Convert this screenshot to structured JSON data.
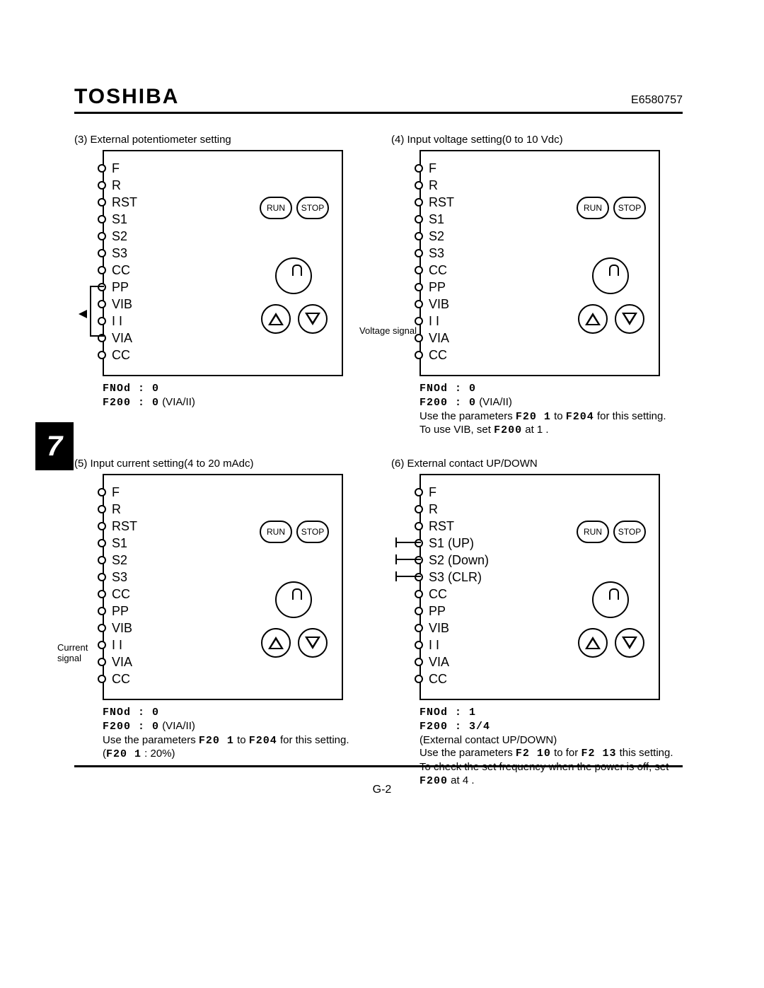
{
  "header": {
    "brand": "TOSHIBA",
    "docnum": "E6580757"
  },
  "tab": "7",
  "pagenum": "G-2",
  "buttons": {
    "run": "RUN",
    "stop": "STOP"
  },
  "terminals_std": [
    "F",
    "R",
    "RST",
    "S1",
    "S2",
    "S3",
    "CC",
    "PP",
    "VIB",
    "I I",
    "VIA",
    "CC"
  ],
  "panels": {
    "p3": {
      "title": "(3)   External potentiometer setting",
      "param1": "FNOd : 0",
      "param2": "F200 : 0",
      "param2_note": "(VIA/II)"
    },
    "p4": {
      "title": "(4)   Input voltage setting(0 to 10 Vdc)",
      "sig": "Voltage signal",
      "param1": "FNOd : 0",
      "param2": "F200 : 0",
      "param2_note": "(VIA/II)",
      "note1a": "Use the parameters ",
      "note1b": "F20 1",
      "note1c": " to ",
      "note1d": "F204",
      "note1e": "  for this setting.",
      "note2a": "To use VIB, set ",
      "note2b": "F200",
      "note2c": " at 1 ."
    },
    "p5": {
      "title": "(5)   Input current setting(4 to 20 mAdc)",
      "sig": "Current signal",
      "param1": "FNOd : 0",
      "param2": "F200 : 0",
      "param2_note": "(VIA/II)",
      "note1a": "Use the parameters ",
      "note1b": "F20 1",
      "note1c": " to ",
      "note1d": "F204",
      "note1e": "  for this setting. (",
      "note1f": "F20 1",
      "note1g": " : 20%)"
    },
    "p6": {
      "title": "(6)   External contact UP/DOWN",
      "terms": [
        "F",
        "R",
        "RST",
        "S1 (UP)",
        "S2 (Down)",
        "S3 (CLR)",
        "CC",
        "PP",
        "VIB",
        "I I",
        "VIA",
        "CC"
      ],
      "param1": "FNOd : 1",
      "param2": "F200 : 3/4",
      "note0": "(External contact UP/DOWN)",
      "note1a": "Use the parameters ",
      "note1b": "F2 10",
      "note1c": " to for ",
      "note1d": "F2 13",
      "note1e": " this setting.",
      "note2a": "To check the set frequency when the power is off, set ",
      "note2b": "F200",
      "note2c": " at 4 ."
    }
  }
}
